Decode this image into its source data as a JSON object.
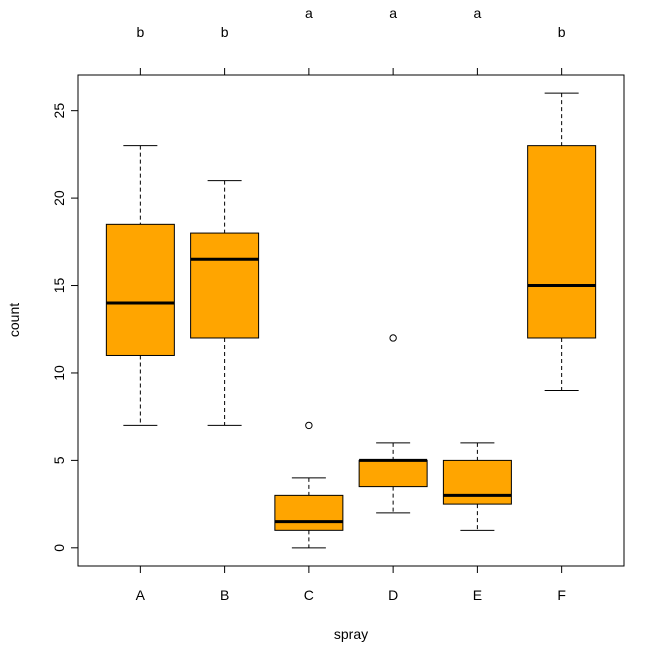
{
  "chart_data": {
    "type": "boxplot",
    "xlabel": "spray",
    "ylabel": "count",
    "ylim": [
      -1.04,
      27.04
    ],
    "yticks": [
      0,
      5,
      10,
      15,
      20,
      25
    ],
    "ytick_labels": [
      "0",
      "5",
      "10",
      "15",
      "20",
      "25"
    ],
    "box_color": "#FFA500",
    "categories": [
      "A",
      "B",
      "C",
      "D",
      "E",
      "F"
    ],
    "group_letters": [
      "b",
      "b",
      "a",
      "a",
      "a",
      "b"
    ],
    "boxes": [
      {
        "category": "A",
        "min": 7,
        "q1": 11,
        "median": 14,
        "q3": 18.5,
        "max": 23,
        "outliers": []
      },
      {
        "category": "B",
        "min": 7,
        "q1": 12,
        "median": 16.5,
        "q3": 18,
        "max": 21,
        "outliers": []
      },
      {
        "category": "C",
        "min": 0,
        "q1": 1,
        "median": 1.5,
        "q3": 3,
        "max": 4,
        "outliers": [
          7
        ]
      },
      {
        "category": "D",
        "min": 2,
        "q1": 3.5,
        "median": 5,
        "q3": 5,
        "max": 6,
        "outliers": [
          12
        ]
      },
      {
        "category": "E",
        "min": 1,
        "q1": 2.5,
        "median": 3,
        "q3": 5,
        "max": 6,
        "outliers": []
      },
      {
        "category": "F",
        "min": 9,
        "q1": 12,
        "median": 15,
        "q3": 23,
        "max": 26,
        "outliers": []
      }
    ]
  }
}
